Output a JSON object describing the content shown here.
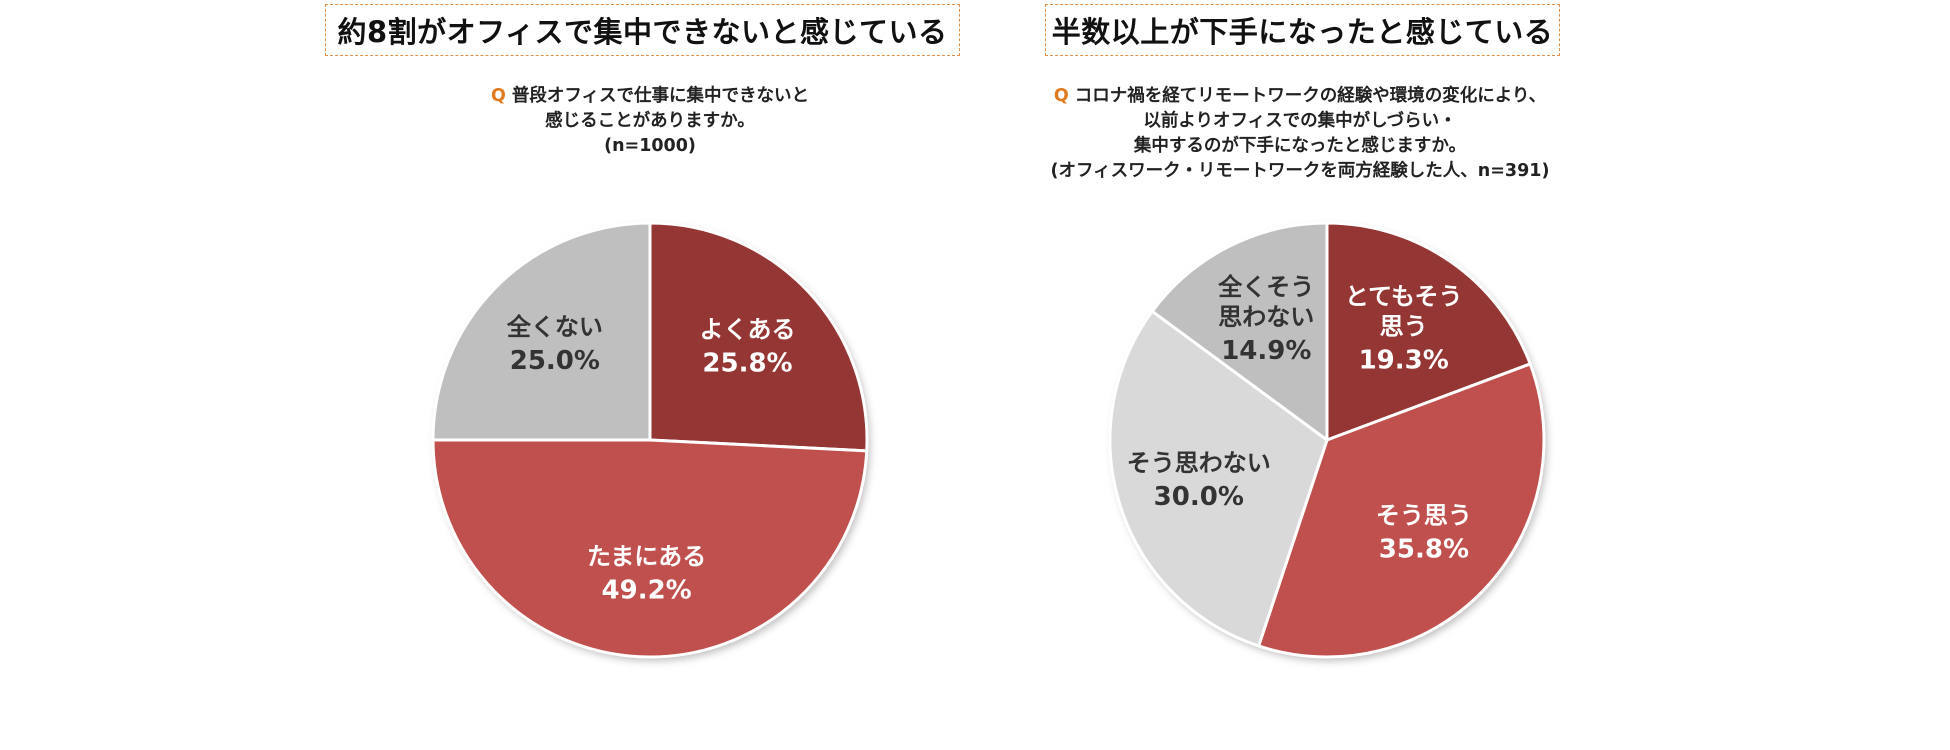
{
  "chart_data": [
    {
      "type": "pie",
      "title": "約8割がオフィスで集中できないと感じている",
      "question_mark": "Q",
      "question_lines": [
        "普段オフィスで仕事に集中できないと",
        "感じることがありますか。",
        "(n=1000)"
      ],
      "slices": [
        {
          "label_lines": [
            "よくある"
          ],
          "value": 25.8,
          "display": "25.8%",
          "color": "#943634",
          "text_color": "#ffffff"
        },
        {
          "label_lines": [
            "たまにある"
          ],
          "value": 49.2,
          "display": "49.2%",
          "color": "#c0504d",
          "text_color": "#ffffff"
        },
        {
          "label_lines": [
            "全くない"
          ],
          "value": 25.0,
          "display": "25.0%",
          "color": "#bfbfbf",
          "text_color": "#333333"
        }
      ]
    },
    {
      "type": "pie",
      "title": "半数以上が下手になったと感じている",
      "question_mark": "Q",
      "question_lines": [
        "コロナ禍を経てリモートワークの経験や環境の変化により、",
        "以前よりオフィスでの集中がしづらい・",
        "集中するのが下手になったと感じますか。",
        "(オフィスワーク・リモートワークを両方経験した人、n=391)"
      ],
      "slices": [
        {
          "label_lines": [
            "とてもそう",
            "思う"
          ],
          "value": 19.3,
          "display": "19.3%",
          "color": "#943634",
          "text_color": "#ffffff"
        },
        {
          "label_lines": [
            "そう思う"
          ],
          "value": 35.8,
          "display": "35.8%",
          "color": "#c0504d",
          "text_color": "#ffffff"
        },
        {
          "label_lines": [
            "そう思わない"
          ],
          "value": 30.0,
          "display": "30.0%",
          "color": "#d9d9d9",
          "text_color": "#333333"
        },
        {
          "label_lines": [
            "全くそう",
            "思わない"
          ],
          "value": 14.9,
          "display": "14.9%",
          "color": "#bfbfbf",
          "text_color": "#333333"
        }
      ]
    }
  ]
}
